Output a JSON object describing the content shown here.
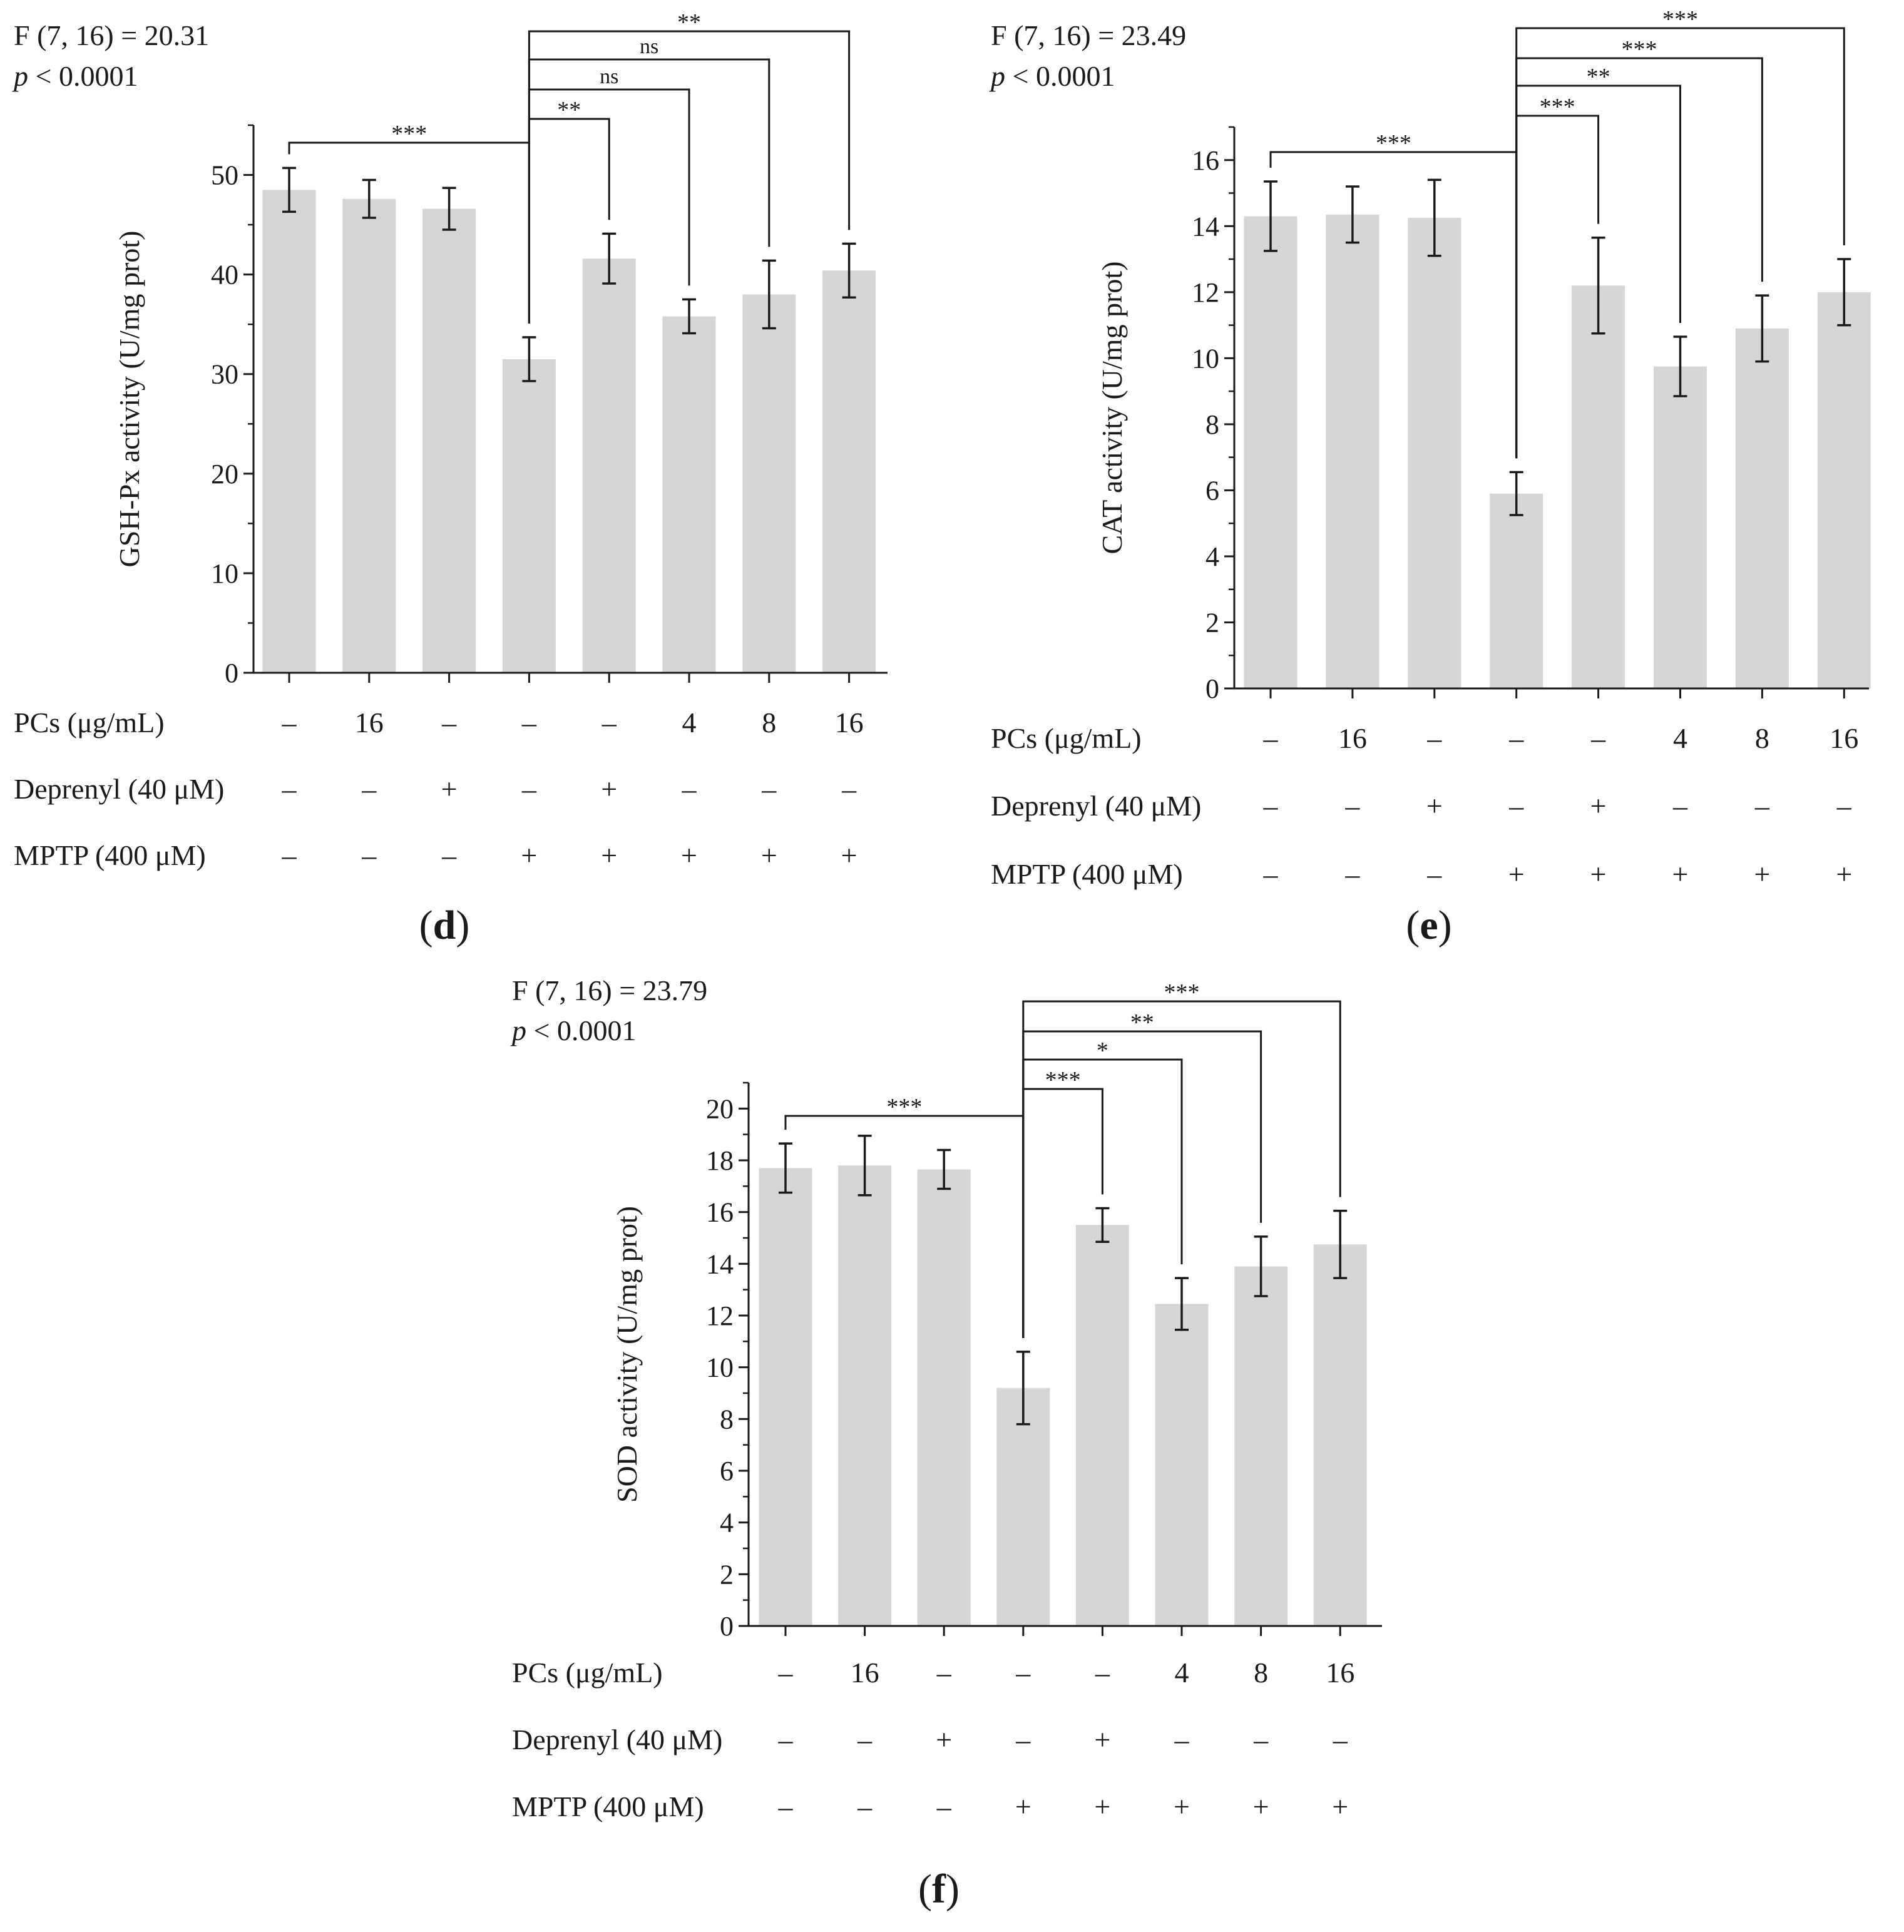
{
  "chart_data": [
    {
      "type": "bar",
      "panel": "(d)",
      "panel_letter": "d",
      "stat_line": "F (7, 16) = 20.31",
      "p_label": "p",
      "p_rest": " < 0.0001",
      "ylabel": "GSH-Px activity (U/mg prot)",
      "ylim": [
        0,
        55
      ],
      "yticks": [
        0,
        10,
        20,
        30,
        40,
        50
      ],
      "minor_step": 5,
      "values": [
        48.5,
        47.6,
        46.6,
        31.5,
        41.6,
        35.8,
        38.0,
        40.4
      ],
      "errors": [
        2.2,
        1.9,
        2.1,
        2.2,
        2.5,
        1.7,
        3.4,
        2.7
      ],
      "comparisons": [
        {
          "from": 3,
          "to": 0,
          "label": "***"
        },
        {
          "from": 3,
          "to": 4,
          "label": "**"
        },
        {
          "from": 3,
          "to": 5,
          "label": "ns"
        },
        {
          "from": 3,
          "to": 6,
          "label": "ns"
        },
        {
          "from": 3,
          "to": 7,
          "label": "**"
        }
      ]
    },
    {
      "type": "bar",
      "panel": "(e)",
      "panel_letter": "e",
      "stat_line": "F (7, 16) = 23.49",
      "p_label": "p",
      "p_rest": " < 0.0001",
      "ylabel": "CAT activity (U/mg prot)",
      "ylim": [
        0,
        17
      ],
      "yticks": [
        0,
        2,
        4,
        6,
        8,
        10,
        12,
        14,
        16
      ],
      "minor_step": 1,
      "values": [
        14.3,
        14.35,
        14.25,
        5.9,
        12.2,
        9.75,
        10.9,
        12.0
      ],
      "errors": [
        1.05,
        0.85,
        1.15,
        0.65,
        1.45,
        0.9,
        1.0,
        1.0
      ],
      "comparisons": [
        {
          "from": 3,
          "to": 0,
          "label": "***"
        },
        {
          "from": 3,
          "to": 4,
          "label": "***"
        },
        {
          "from": 3,
          "to": 5,
          "label": "**"
        },
        {
          "from": 3,
          "to": 6,
          "label": "***"
        },
        {
          "from": 3,
          "to": 7,
          "label": "***"
        }
      ]
    },
    {
      "type": "bar",
      "panel": "(f)",
      "panel_letter": "f",
      "stat_line": "F (7, 16) = 23.79",
      "p_label": "p",
      "p_rest": " < 0.0001",
      "ylabel": "SOD activity (U/mg prot)",
      "ylim": [
        0,
        21
      ],
      "yticks": [
        0,
        2,
        4,
        6,
        8,
        10,
        12,
        14,
        16,
        18,
        20
      ],
      "minor_step": 1,
      "values": [
        17.7,
        17.8,
        17.65,
        9.2,
        15.5,
        12.45,
        13.9,
        14.75
      ],
      "errors": [
        0.95,
        1.15,
        0.75,
        1.4,
        0.65,
        1.0,
        1.15,
        1.3
      ],
      "comparisons": [
        {
          "from": 3,
          "to": 0,
          "label": "***"
        },
        {
          "from": 3,
          "to": 4,
          "label": "***"
        },
        {
          "from": 3,
          "to": 5,
          "label": "*"
        },
        {
          "from": 3,
          "to": 6,
          "label": "**"
        },
        {
          "from": 3,
          "to": 7,
          "label": "***"
        }
      ]
    }
  ],
  "treatments": {
    "rows": [
      {
        "label": "PCs (μg/mL)",
        "values": [
          "–",
          "16",
          "–",
          "–",
          "–",
          "4",
          "8",
          "16"
        ]
      },
      {
        "label": "Deprenyl (40 μM)",
        "values": [
          "–",
          "–",
          "+",
          "–",
          "+",
          "–",
          "–",
          "–"
        ]
      },
      {
        "label": "MPTP (400 μM)",
        "values": [
          "–",
          "–",
          "–",
          "+",
          "+",
          "+",
          "+",
          "+"
        ]
      }
    ]
  }
}
